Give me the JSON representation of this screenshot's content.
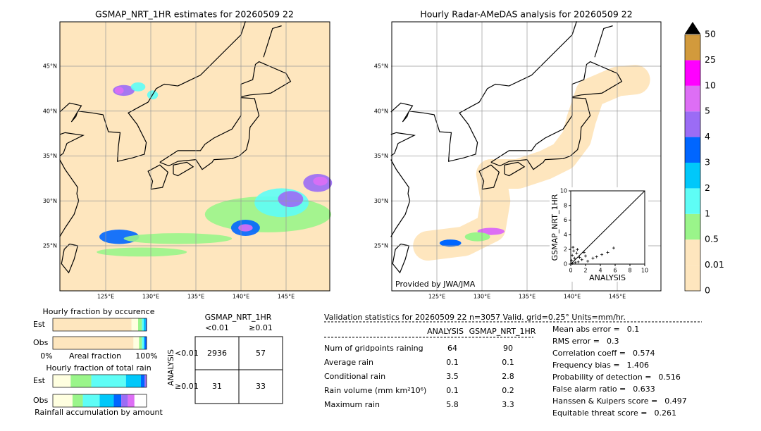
{
  "left_map": {
    "title": "GSMAP_NRT_1HR estimates for 20260509 22",
    "lat_labels": [
      "45°N",
      "40°N",
      "35°N",
      "30°N",
      "25°N"
    ],
    "lon_labels": [
      "125°E",
      "130°E",
      "135°E",
      "140°E",
      "145°E"
    ]
  },
  "right_map": {
    "title": "Hourly Radar-AMeDAS analysis for 20260509 22",
    "lat_labels": [
      "45°N",
      "40°N",
      "35°N",
      "30°N",
      "25°N"
    ],
    "lon_labels": [
      "125°E",
      "130°E",
      "135°E",
      "140°E",
      "145°E"
    ],
    "credit": "Provided by JWA/JMA"
  },
  "scatter": {
    "type": "scatter",
    "xlabel": "ANALYSIS",
    "ylabel": "GSMAP_NRT_1HR",
    "xlim": [
      0,
      10
    ],
    "ylim": [
      0,
      10
    ],
    "xticks": [
      0,
      2,
      4,
      6,
      8,
      10
    ],
    "yticks": [
      0,
      2,
      4,
      6,
      8,
      10
    ],
    "x": [
      0.1,
      0.2,
      0.3,
      0.5,
      0.8,
      1.0,
      1.2,
      1.5,
      2.0,
      2.3,
      3.0,
      3.5,
      4.2,
      5.0,
      5.8,
      0.4,
      0.6,
      1.8,
      0.2,
      0.9
    ],
    "y": [
      0.5,
      1.2,
      2.3,
      0.8,
      1.5,
      0.3,
      0.9,
      0.6,
      1.1,
      0.4,
      0.8,
      1.0,
      1.3,
      1.6,
      2.2,
      1.8,
      0.2,
      1.6,
      0.1,
      2.0
    ]
  },
  "colorbar": {
    "labels": [
      "0",
      "0.01",
      "0.5",
      "1",
      "2",
      "3",
      "4",
      "5",
      "10",
      "25",
      "50"
    ],
    "colors": [
      "#fee6be",
      "#fee6be",
      "#9af58a",
      "#5efdf6",
      "#00c8fa",
      "#0066ff",
      "#9b6cf5",
      "#dd6ef5",
      "#ff00ff",
      "#d29a3c"
    ]
  },
  "occurrence": {
    "title": "Hourly fraction by occurence",
    "rows": [
      {
        "name": "Est",
        "values": [
          84,
          7,
          4,
          2,
          2,
          1
        ]
      },
      {
        "name": "Obs",
        "values": [
          86,
          6,
          3,
          2,
          1,
          2
        ]
      }
    ],
    "colors": [
      "#fee6be",
      "#ffffe0",
      "#9af58a",
      "#5efdf6",
      "#00c8fa",
      "#0066ff"
    ],
    "axis_left": "0%",
    "axis_mid": "Areal fraction",
    "axis_right": "100%"
  },
  "total_rain": {
    "title": "Hourly fraction of total rain",
    "rows": [
      {
        "name": "Est",
        "values": [
          19,
          22,
          37,
          16,
          4,
          2
        ]
      },
      {
        "name": "Obs",
        "values": [
          21,
          11,
          18,
          15,
          8,
          7,
          7
        ]
      }
    ],
    "colors": [
      "#ffffe0",
      "#9af58a",
      "#5efdf6",
      "#00c8fa",
      "#0066ff",
      "#9b6cf5",
      "#dd6ef5"
    ],
    "footer": "Rainfall accumulation by amount"
  },
  "contingency": {
    "title": "GSMAP_NRT_1HR",
    "columns": [
      "<0.01",
      "≥0.01"
    ],
    "row_title": "ANALYSIS",
    "rows": [
      "<0.01",
      "≥0.01"
    ],
    "cells": [
      [
        2936,
        57
      ],
      [
        31,
        33
      ]
    ]
  },
  "validation": {
    "title": "Validation statistics for 20260509 22  n=3057 Valid. grid=0.25° Units=mm/hr.",
    "columns": [
      "ANALYSIS",
      "GSMAP_NRT_1HR"
    ],
    "rows": [
      {
        "name": "Num of gridpoints raining",
        "values": [
          64,
          90
        ]
      },
      {
        "name": "Average rain",
        "values": [
          0.1,
          0.1
        ]
      },
      {
        "name": "Conditional rain",
        "values": [
          3.5,
          2.8
        ]
      },
      {
        "name": "Rain volume (mm km²10⁶)",
        "values": [
          0.1,
          0.2
        ]
      },
      {
        "name": "Maximum rain",
        "values": [
          5.8,
          3.3
        ]
      }
    ],
    "scores": [
      {
        "label": "Mean abs error =",
        "value": 0.1
      },
      {
        "label": "RMS error =",
        "value": 0.3
      },
      {
        "label": "Correlation coeff =",
        "value": 0.574
      },
      {
        "label": "Frequency bias =",
        "value": 1.406
      },
      {
        "label": "Probability of detection =",
        "value": 0.516
      },
      {
        "label": "False alarm ratio =",
        "value": 0.633
      },
      {
        "label": "Hanssen & Kuipers score =",
        "value": 0.497
      },
      {
        "label": "Equitable threat score =",
        "value": 0.261
      }
    ]
  }
}
